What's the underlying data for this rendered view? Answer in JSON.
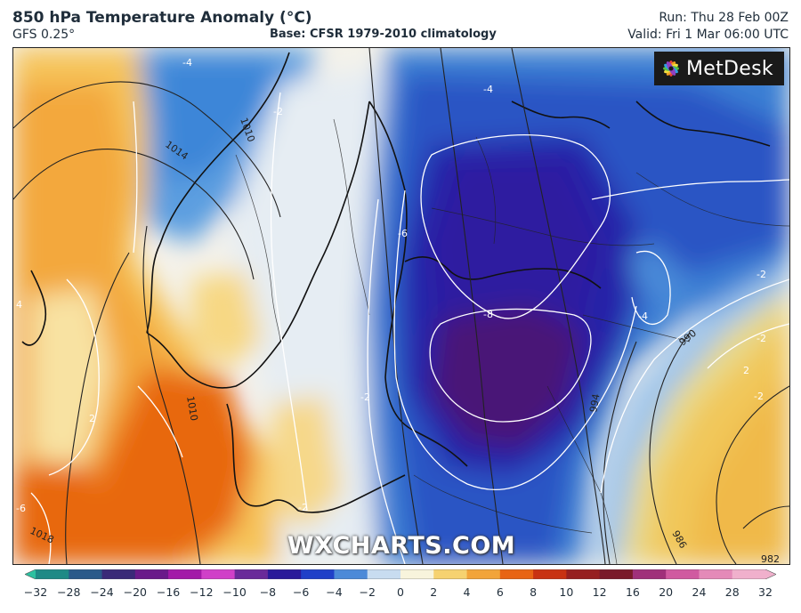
{
  "header": {
    "title": "850 hPa Temperature Anomaly (°C)",
    "model": "GFS 0.25°",
    "base": "Base: CFSR 1979-2010 climatology",
    "run": "Run: Thu 28 Feb 00Z",
    "valid": "Valid: Fri 1 Mar 06:00 UTC"
  },
  "logo": {
    "text": "MetDesk",
    "icon": "metdesk-flower-icon"
  },
  "watermark": "WXCHARTS.COM",
  "map": {
    "region": "Scandinavia and western Russia",
    "isobar_labels": [
      "1010",
      "1014",
      "1010",
      "1018",
      "994",
      "990",
      "986",
      "982"
    ],
    "anomaly_labels": [
      "-4",
      "-4",
      "-2",
      "-6",
      "-8",
      "-4",
      "-2",
      "-2",
      "4",
      "2",
      "-6",
      "-2",
      "2",
      "-2",
      "-2"
    ],
    "colors": {
      "warm_high": "#e8660f",
      "warm_mid": "#f3a93c",
      "warm_low": "#f7cf64",
      "neutral": "#f4f4ef",
      "cool_low": "#c9dbef",
      "cool_mid": "#3f8fd6",
      "cold": "#1e2fb3",
      "very_cold": "#2a159a",
      "extreme_cold": "#4a1577"
    }
  },
  "colorbar": {
    "ticks": [
      "−32",
      "−28",
      "−24",
      "−20",
      "−16",
      "−12",
      "−10",
      "−8",
      "−6",
      "−4",
      "−2",
      "0",
      "2",
      "4",
      "6",
      "8",
      "10",
      "12",
      "16",
      "20",
      "24",
      "28",
      "32"
    ],
    "colors": [
      "#2cc0a0",
      "#1e8a86",
      "#2a5a8a",
      "#3a2a78",
      "#6a1a8a",
      "#a31aa8",
      "#d040c8",
      "#6a2a9a",
      "#2a1a9a",
      "#2040c8",
      "#4c8ad8",
      "#c8dcf0",
      "#f8f4dc",
      "#f6d270",
      "#f2a43a",
      "#e86414",
      "#c83212",
      "#962020",
      "#7a1a2a",
      "#a0307a",
      "#d05aa0",
      "#e48ab8",
      "#f0b0cc"
    ]
  }
}
